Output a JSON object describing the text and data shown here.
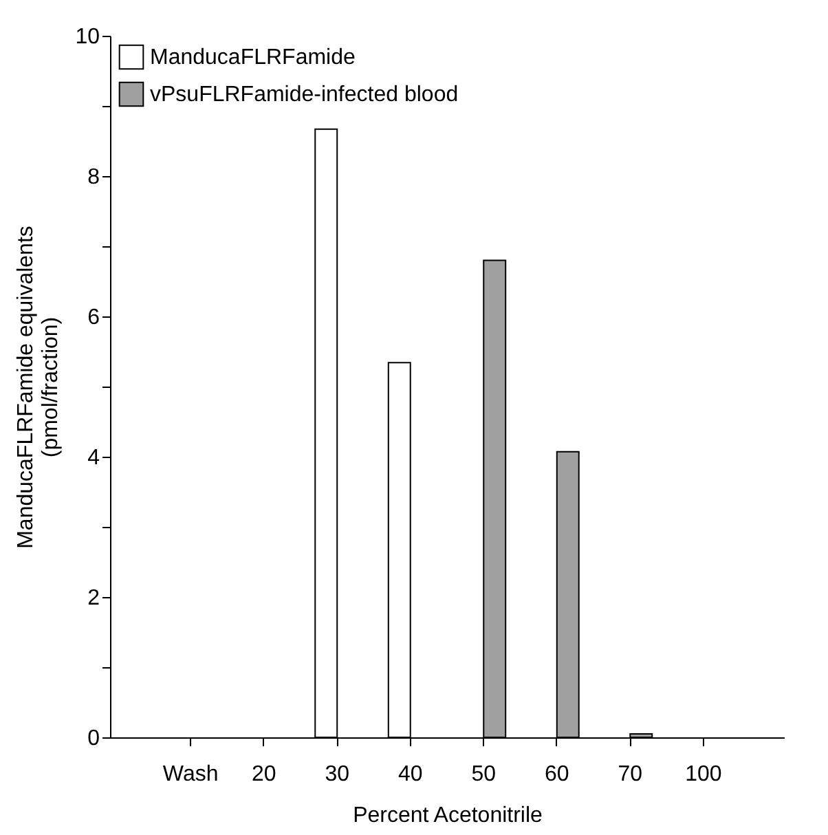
{
  "chart_data": {
    "type": "bar",
    "xlabel": "Percent Acetonitrile",
    "ylabel": "ManducaFLRFamide equivalents\n(pmol/fraction)",
    "categories": [
      "Wash",
      "20",
      "30",
      "40",
      "50",
      "60",
      "70",
      "100"
    ],
    "series": [
      {
        "name": "ManducaFLRFamide",
        "color": "#ffffff",
        "values": [
          0,
          0,
          8.67,
          5.34,
          0,
          0,
          0,
          0
        ]
      },
      {
        "name": "vPsuFLRFamide-infected blood",
        "color": "#a0a0a0",
        "values": [
          0,
          0,
          0,
          0,
          6.8,
          4.07,
          0.05,
          0
        ]
      }
    ],
    "ylim": [
      0,
      10
    ],
    "yticks": [
      0,
      {
        "value": 1,
        "label": null
      },
      2,
      {
        "value": 3,
        "label": null
      },
      4,
      {
        "value": 5,
        "label": null
      },
      6,
      {
        "value": 7,
        "label": null
      },
      8,
      {
        "value": 9,
        "label": null
      },
      10
    ],
    "grid": false,
    "legend": "top left"
  }
}
